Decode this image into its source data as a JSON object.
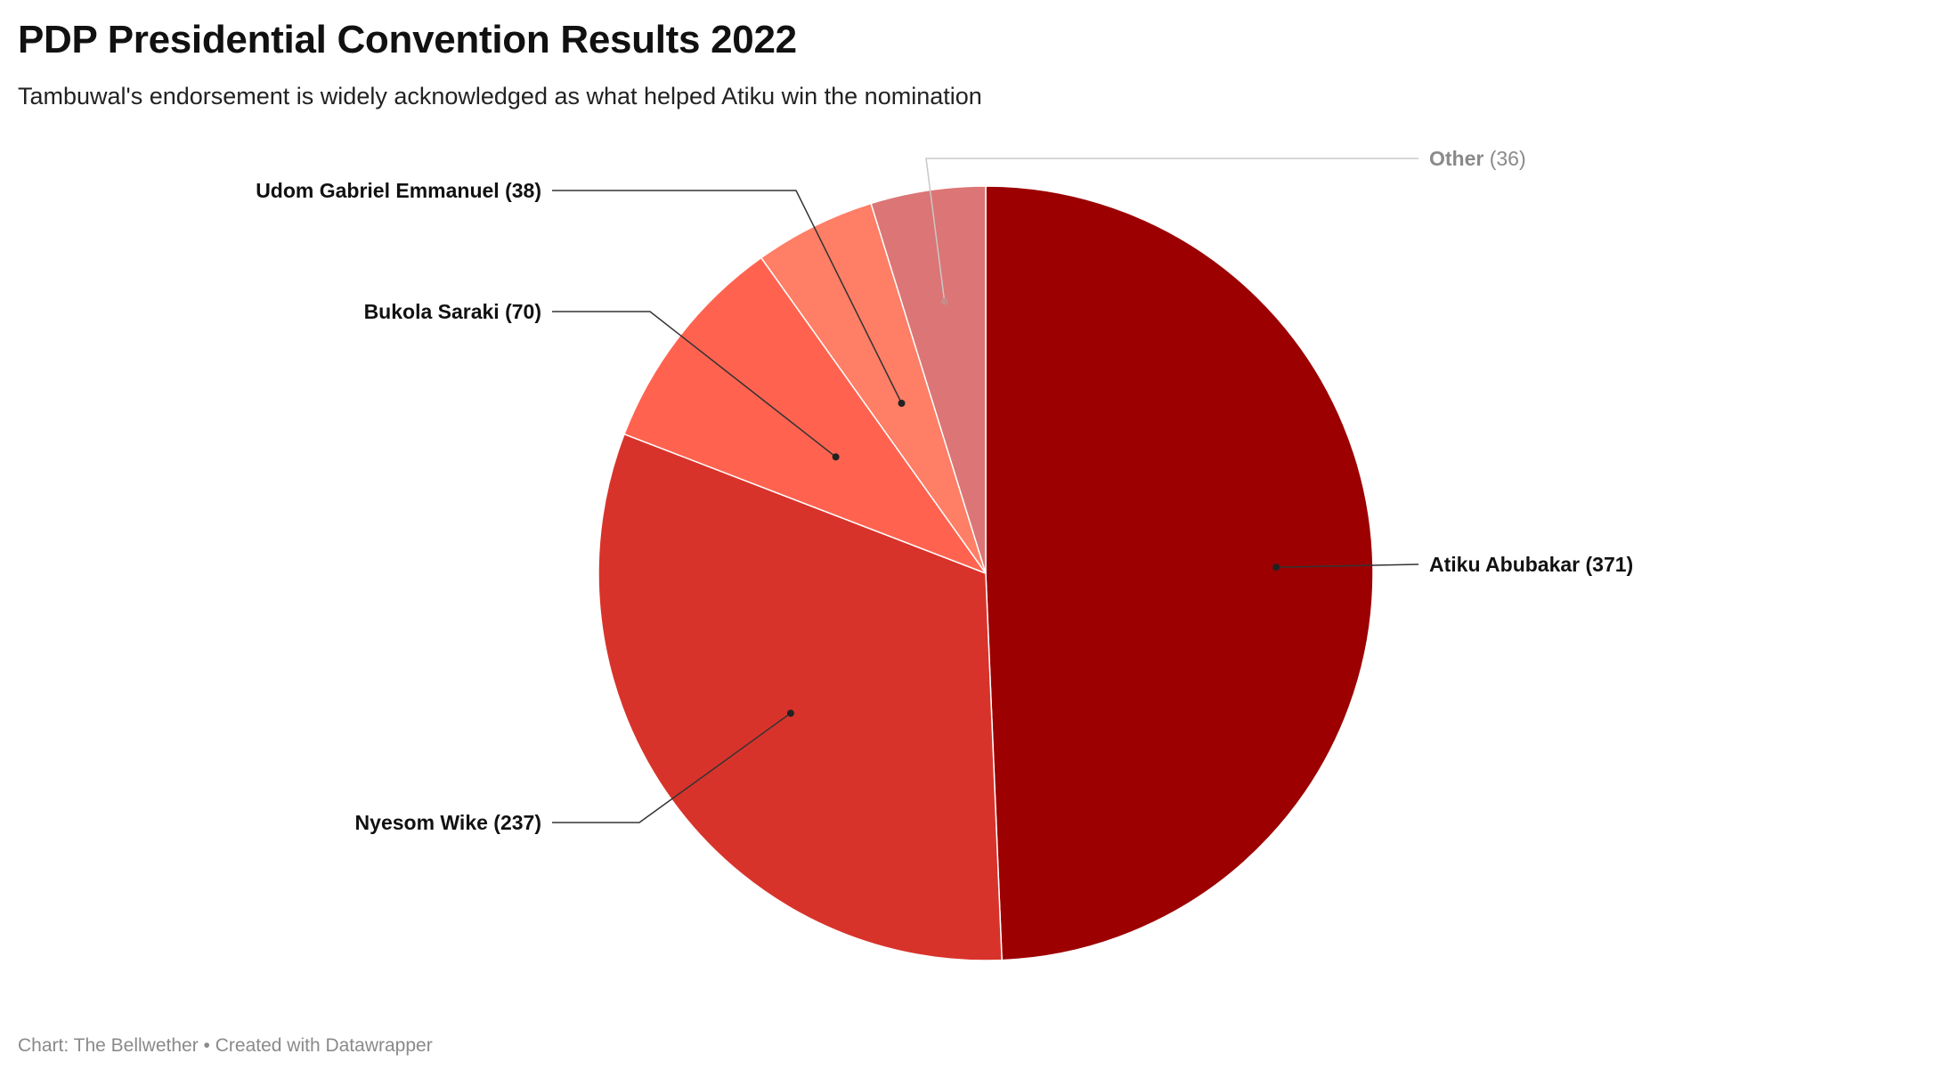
{
  "header": {
    "title": "PDP Presidential Convention Results 2022",
    "subtitle": "Tambuwal's endorsement is widely acknowledged as what helped Atiku win the nomination"
  },
  "footer": {
    "credit": "Chart: The Bellwether • Created with Datawrapper"
  },
  "chart_data": {
    "type": "pie",
    "title": "PDP Presidential Convention Results 2022",
    "subtitle": "Tambuwal's endorsement is widely acknowledged as what helped Atiku win the nomination",
    "slices": [
      {
        "label": "Atiku Abubakar (371)",
        "name": "Atiku Abubakar",
        "value": 371,
        "color": "#9c0000",
        "label_color": "#111111"
      },
      {
        "label": "Nyesom Wike (237)",
        "name": "Nyesom Wike",
        "value": 237,
        "color": "#d8332b",
        "label_color": "#111111"
      },
      {
        "label": "Bukola Saraki (70)",
        "name": "Bukola Saraki",
        "value": 70,
        "color": "#ff6350",
        "label_color": "#111111"
      },
      {
        "label": "Udom Gabriel Emmanuel (38)",
        "name": "Udom Gabriel Emmanuel",
        "value": 38,
        "color": "#ff7e66",
        "label_color": "#111111"
      },
      {
        "label": "Other (36)",
        "name": "Other",
        "value": 36,
        "color": "#dc7575",
        "label_color": "#8a8a8a"
      }
    ]
  }
}
